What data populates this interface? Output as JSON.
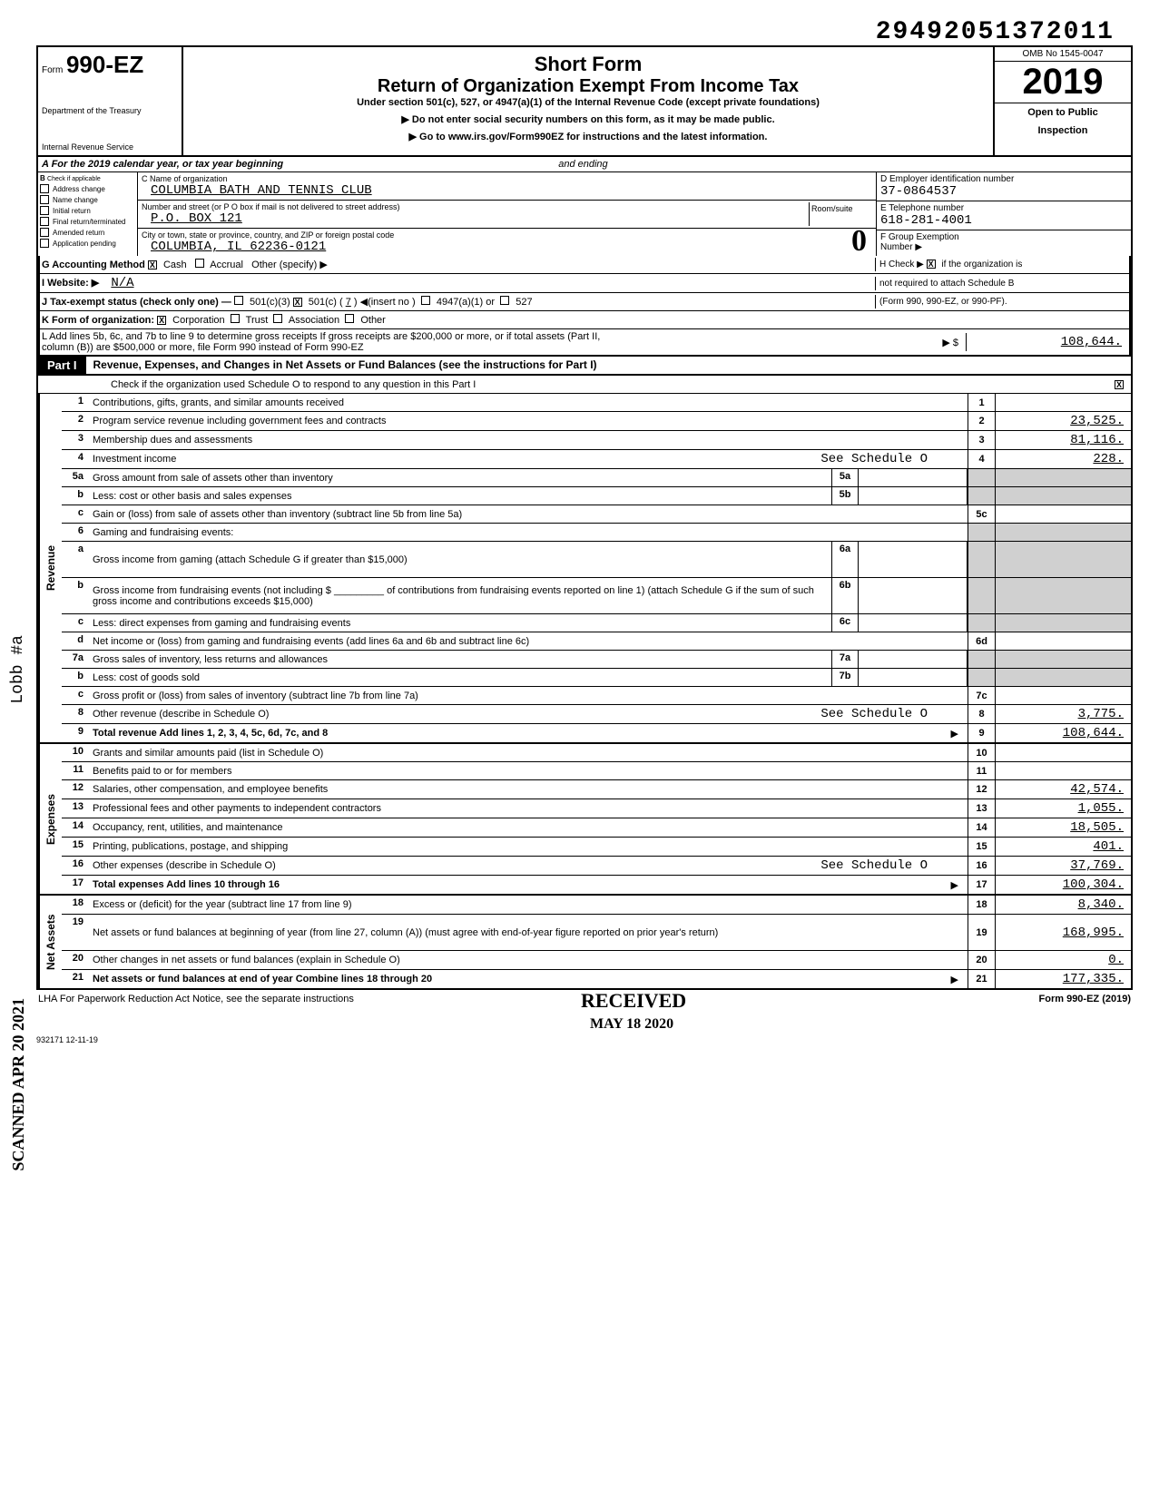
{
  "dln": "29492051372011",
  "header": {
    "form_prefix": "Form",
    "form_number": "990-EZ",
    "title": "Short Form",
    "subtitle": "Return of Organization Exempt From Income Tax",
    "under": "Under section 501(c), 527, or 4947(a)(1) of the Internal Revenue Code (except private foundations)",
    "instr1": "▶ Do not enter social security numbers on this form, as it may be made public.",
    "instr2": "▶ Go to www.irs.gov/Form990EZ for instructions and the latest information.",
    "dept1": "Department of the Treasury",
    "dept2": "Internal Revenue Service",
    "omb": "OMB No 1545-0047",
    "year": "2019",
    "open": "Open to Public",
    "inspection": "Inspection"
  },
  "info": {
    "a_label": "A  For the 2019 calendar year, or tax year beginning",
    "a_ending": "and ending",
    "b_label": "B",
    "b_check": "Check if applicable",
    "b_addr": "Address change",
    "b_name": "Name change",
    "b_init": "Initial return",
    "b_final": "Final return/terminated",
    "b_amend": "Amended return",
    "b_app": "Application pending",
    "c_label": "C Name of organization",
    "org_name": "COLUMBIA BATH AND TENNIS CLUB",
    "addr_label": "Number and street (or P O box if mail is not delivered to street address)",
    "room_label": "Room/suite",
    "addr": "P.O. BOX 121",
    "city_label": "City or town, state or province, country, and ZIP or foreign postal code",
    "city": "COLUMBIA, IL  62236-0121",
    "d_label": "D Employer identification number",
    "ein": "37-0864537",
    "e_label": "E  Telephone number",
    "phone": "618-281-4001",
    "f_label": "F  Group Exemption",
    "f_number": "Number ▶",
    "g_label": "G  Accounting Method",
    "g_cash": "Cash",
    "g_accrual": "Accrual",
    "g_other": "Other (specify) ▶",
    "h_label": "H Check ▶",
    "h_text1": "if the organization is",
    "h_text2": "not required to attach Schedule B",
    "h_text3": "(Form 990, 990-EZ, or 990-PF).",
    "i_label": "I   Website: ▶",
    "website": "N/A",
    "j_label": "J   Tax-exempt status (check only one) —",
    "j_501c3": "501(c)(3)",
    "j_501c": "501(c) (",
    "j_num": "7",
    "j_insert": ") ◀(insert no )",
    "j_4947": "4947(a)(1) or",
    "j_527": "527",
    "k_label": "K  Form of organization:",
    "k_corp": "Corporation",
    "k_trust": "Trust",
    "k_assoc": "Association",
    "k_other": "Other",
    "l_text": "L  Add lines 5b, 6c, and 7b to line 9 to determine gross receipts  If gross receipts are $200,000 or more, or if total assets (Part II,",
    "l_text2": "column (B)) are $500,000 or more, file Form 990 instead of Form 990-EZ",
    "l_arrow": "▶   $",
    "l_amount": "108,644."
  },
  "part1": {
    "label": "Part I",
    "title": "Revenue, Expenses, and Changes in Net Assets or Fund Balances (see the instructions for Part I)",
    "check_text": "Check if the organization used Schedule O to respond to any question in this Part I",
    "checked": "X"
  },
  "sections": {
    "revenue": "Revenue",
    "expenses": "Expenses",
    "netassets": "Net Assets"
  },
  "lines": [
    {
      "n": "1",
      "desc": "Contributions, gifts, grants, and similar amounts received",
      "rn": "1",
      "amt": ""
    },
    {
      "n": "2",
      "desc": "Program service revenue including government fees and contracts",
      "rn": "2",
      "amt": "23,525."
    },
    {
      "n": "3",
      "desc": "Membership dues and assessments",
      "rn": "3",
      "amt": "81,116."
    },
    {
      "n": "4",
      "desc": "Investment income",
      "note": "See Schedule O",
      "rn": "4",
      "amt": "228."
    },
    {
      "n": "5a",
      "desc": "Gross amount from sale of assets other than inventory",
      "sub": "5a",
      "shadeR": true
    },
    {
      "n": "b",
      "desc": "Less: cost or other basis and sales expenses",
      "sub": "5b",
      "shadeR": true
    },
    {
      "n": "c",
      "desc": "Gain or (loss) from sale of assets other than inventory (subtract line 5b from line 5a)",
      "rn": "5c",
      "amt": ""
    },
    {
      "n": "6",
      "desc": "Gaming and fundraising events:",
      "shadeR": true,
      "shadeN": true
    },
    {
      "n": "a",
      "desc": "Gross income from gaming (attach Schedule G if greater than $15,000)",
      "sub": "6a",
      "shadeR": true,
      "tall": true
    },
    {
      "n": "b",
      "desc": "Gross income from fundraising events (not including $ _________ of contributions from fundraising events reported on line 1) (attach Schedule G if the sum of such gross income and contributions exceeds $15,000)",
      "sub": "6b",
      "shadeR": true,
      "tall": true
    },
    {
      "n": "c",
      "desc": "Less: direct expenses from gaming and fundraising events",
      "sub": "6c",
      "shadeR": true
    },
    {
      "n": "d",
      "desc": "Net income or (loss) from gaming and fundraising events (add lines 6a and 6b and subtract line 6c)",
      "rn": "6d",
      "amt": ""
    },
    {
      "n": "7a",
      "desc": "Gross sales of inventory, less returns and allowances",
      "sub": "7a",
      "shadeR": true
    },
    {
      "n": "b",
      "desc": "Less: cost of goods sold",
      "sub": "7b",
      "shadeR": true
    },
    {
      "n": "c",
      "desc": "Gross profit or (loss) from sales of inventory (subtract line 7b from line 7a)",
      "rn": "7c",
      "amt": ""
    },
    {
      "n": "8",
      "desc": "Other revenue (describe in Schedule O)",
      "note": "See Schedule O",
      "rn": "8",
      "amt": "3,775."
    },
    {
      "n": "9",
      "desc": "Total revenue  Add lines 1, 2, 3, 4, 5c, 6d, 7c, and 8",
      "arrow": "▶",
      "rn": "9",
      "amt": "108,644.",
      "bold": true
    }
  ],
  "expenses": [
    {
      "n": "10",
      "desc": "Grants and similar amounts paid (list in Schedule O)",
      "rn": "10",
      "amt": ""
    },
    {
      "n": "11",
      "desc": "Benefits paid to or for members",
      "rn": "11",
      "amt": ""
    },
    {
      "n": "12",
      "desc": "Salaries, other compensation, and employee benefits",
      "rn": "12",
      "amt": "42,574."
    },
    {
      "n": "13",
      "desc": "Professional fees and other payments to independent contractors",
      "rn": "13",
      "amt": "1,055."
    },
    {
      "n": "14",
      "desc": "Occupancy, rent, utilities, and maintenance",
      "rn": "14",
      "amt": "18,505."
    },
    {
      "n": "15",
      "desc": "Printing, publications, postage, and shipping",
      "rn": "15",
      "amt": "401."
    },
    {
      "n": "16",
      "desc": "Other expenses (describe in Schedule O)",
      "note": "See Schedule O",
      "rn": "16",
      "amt": "37,769."
    },
    {
      "n": "17",
      "desc": "Total expenses  Add lines 10 through 16",
      "arrow": "▶",
      "rn": "17",
      "amt": "100,304.",
      "bold": true
    }
  ],
  "netassets": [
    {
      "n": "18",
      "desc": "Excess or (deficit) for the year (subtract line 17 from line 9)",
      "rn": "18",
      "amt": "8,340."
    },
    {
      "n": "19",
      "desc": "Net assets or fund balances at beginning of year (from line 27, column (A)) (must agree with end-of-year figure reported on prior year's return)",
      "rn": "19",
      "amt": "168,995.",
      "tall": true
    },
    {
      "n": "20",
      "desc": "Other changes in net assets or fund balances (explain in Schedule O)",
      "rn": "20",
      "amt": "0."
    },
    {
      "n": "21",
      "desc": "Net assets or fund balances at end of year  Combine lines 18 through 20",
      "arrow": "▶",
      "rn": "21",
      "amt": "177,335.",
      "bold": true
    }
  ],
  "footer": {
    "lha": "LHA  For Paperwork Reduction Act Notice, see the separate instructions",
    "form": "Form 990-EZ (2019)",
    "code": "932171  12-11-19"
  },
  "stamps": {
    "received": "RECEIVED",
    "date": "MAY 18 2020",
    "lobb": "Lobb #a",
    "scanned": "SCANNED APR 20 2021",
    "zero": "0"
  }
}
